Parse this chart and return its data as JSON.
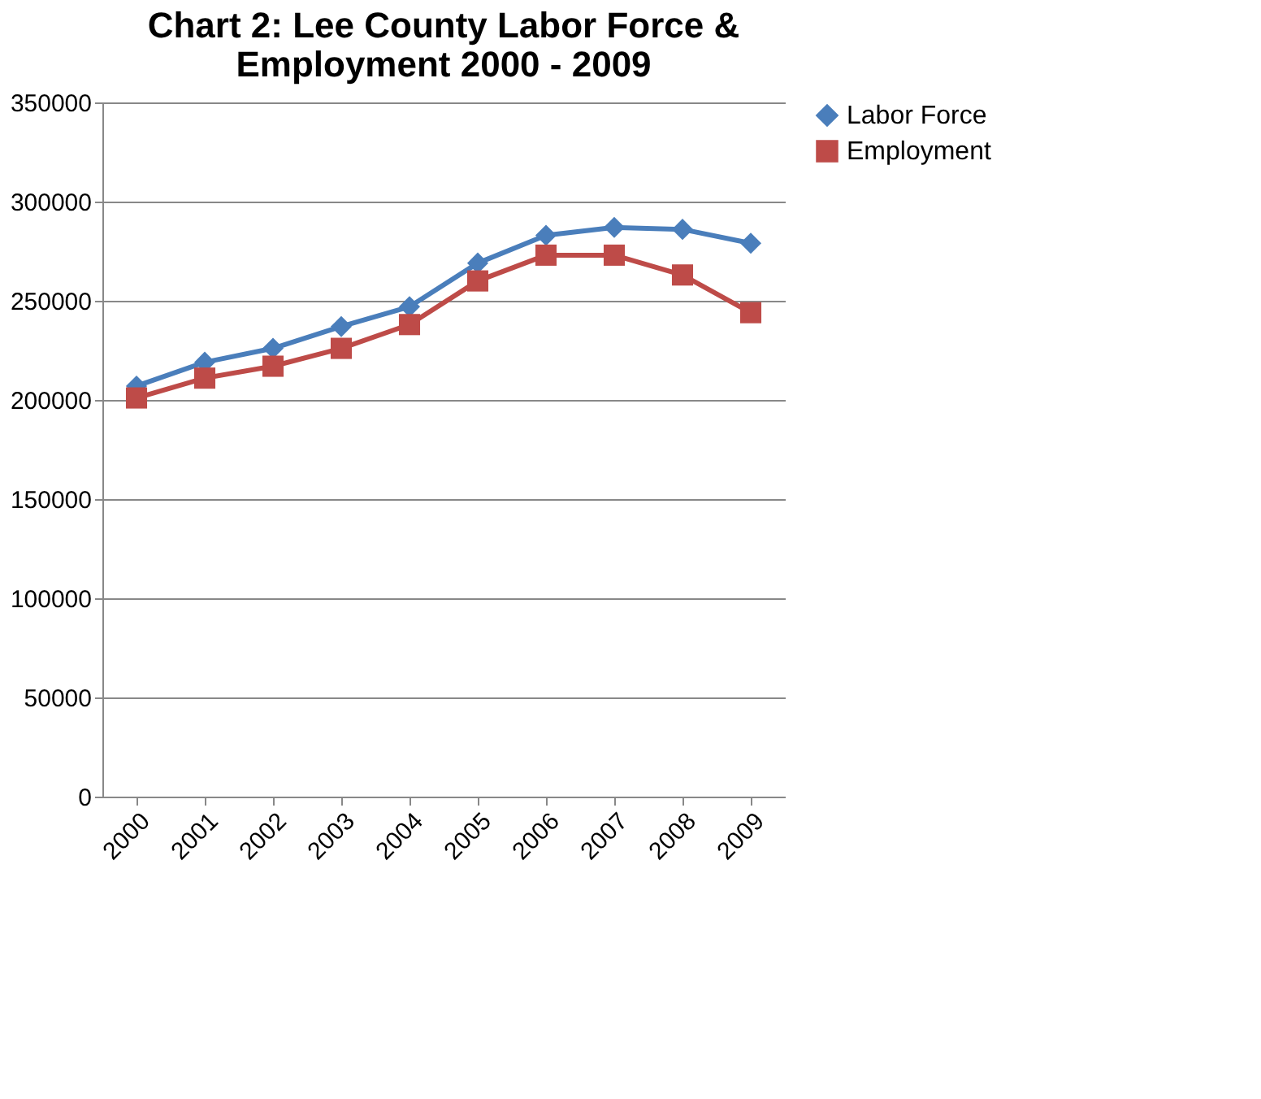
{
  "chart_data": {
    "type": "line",
    "title": "Chart 2: Lee County Labor Force & Employment 2000 - 2009",
    "categories": [
      "2000",
      "2001",
      "2002",
      "2003",
      "2004",
      "2005",
      "2006",
      "2007",
      "2008",
      "2009"
    ],
    "series": [
      {
        "name": "Labor Force",
        "color": "#4a7ebb",
        "marker": "diamond",
        "values": [
          207000,
          219000,
          226000,
          237000,
          247000,
          269000,
          283000,
          287000,
          286000,
          279000
        ]
      },
      {
        "name": "Employment",
        "color": "#be4b48",
        "marker": "square",
        "values": [
          201000,
          211000,
          217000,
          226000,
          238000,
          260000,
          273000,
          273000,
          263000,
          244000
        ]
      }
    ],
    "ylim": [
      0,
      350000
    ],
    "yticks": [
      0,
      50000,
      100000,
      150000,
      200000,
      250000,
      300000,
      350000
    ],
    "grid": "y",
    "legend": "right",
    "line_style": "solid"
  }
}
